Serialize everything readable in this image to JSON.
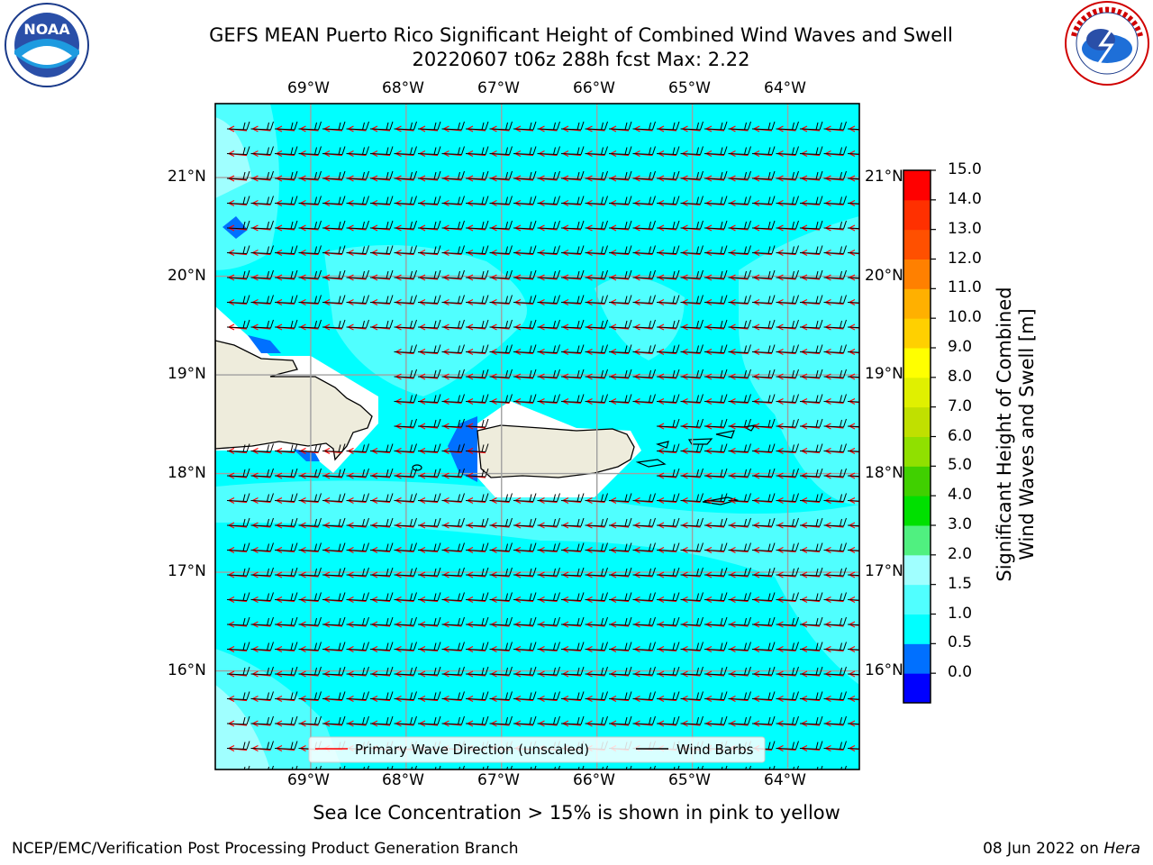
{
  "title": {
    "line1": "GEFS MEAN Puerto Rico Significant Height of Combined Wind Waves and Swell",
    "line2": "20220607 t06z 288h fcst   Max: 2.22"
  },
  "logos": {
    "left_icon": "noaa-logo",
    "left_text": "NOAA",
    "right_icon": "national-weather-service-logo",
    "right_text": "NATIONAL WEATHER SERVICE"
  },
  "map": {
    "lon_labels": [
      "69°W",
      "68°W",
      "67°W",
      "66°W",
      "65°W",
      "64°W"
    ],
    "lat_labels": [
      "21°N",
      "20°N",
      "19°N",
      "18°N",
      "17°N",
      "16°N"
    ],
    "lon_range": [
      -70,
      -63.25
    ],
    "lat_range": [
      15.0,
      21.75
    ]
  },
  "legend": {
    "wave_label": "Primary Wave Direction (unscaled)",
    "barb_label": "Wind Barbs",
    "wave_color": "#ff0000",
    "barb_color": "#000000"
  },
  "colorbar": {
    "title_line1": "Significant Height of Combined",
    "title_line2": "Wind Waves and Swell [m]",
    "ticks": [
      "15.0",
      "14.0",
      "13.0",
      "12.0",
      "11.0",
      "10.0",
      "9.0",
      "8.0",
      "7.0",
      "6.0",
      "5.0",
      "4.0",
      "3.0",
      "2.0",
      "1.5",
      "1.0",
      "0.5",
      "0.0"
    ],
    "colors_bottom_to_top": [
      "#0000ff",
      "#0070ff",
      "#00ffff",
      "#50ffff",
      "#a0ffff",
      "#50f080",
      "#00e000",
      "#40d000",
      "#90e000",
      "#c0e000",
      "#e0f000",
      "#ffff00",
      "#ffd000",
      "#ffb000",
      "#ff8000",
      "#ff5000",
      "#ff3000",
      "#ff0000"
    ]
  },
  "colors": {
    "sea": "#00ffff",
    "lighter_sea": "#50ffff",
    "land": "#eeecdc",
    "shallow": "#0070ff"
  },
  "note": "Sea Ice Concentration > 15% is shown in pink to yellow",
  "footer": {
    "left": "NCEP/EMC/Verification Post Processing Product Generation Branch",
    "right_date": "08 Jun 2022 on ",
    "right_host": "Hera"
  }
}
